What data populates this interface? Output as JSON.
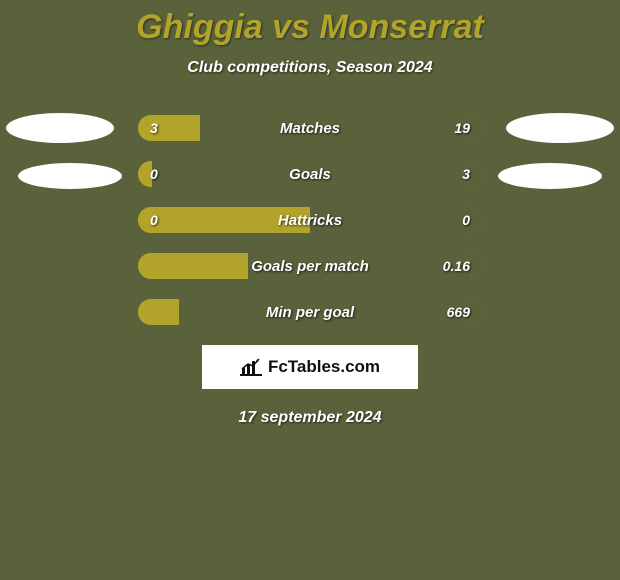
{
  "background_color": "#5a623c",
  "title": {
    "text": "Ghiggia vs Monserrat",
    "color": "#b2a32b",
    "fontsize": 34
  },
  "subtitle": {
    "text": "Club competitions, Season 2024",
    "color": "#ffffff",
    "fontsize": 16
  },
  "team_colors": {
    "left": "#b2a32b",
    "right": "#5a623c"
  },
  "bar_track_color": "#b2a32b",
  "stats": [
    {
      "label": "Matches",
      "left_value": "3",
      "right_value": "19",
      "left_pct": 18,
      "right_pct": 82
    },
    {
      "label": "Goals",
      "left_value": "0",
      "right_value": "3",
      "left_pct": 4,
      "right_pct": 96
    },
    {
      "label": "Hattricks",
      "left_value": "0",
      "right_value": "0",
      "left_pct": 50,
      "right_pct": 50
    },
    {
      "label": "Goals per match",
      "left_value": "",
      "right_value": "0.16",
      "left_pct": 32,
      "right_pct": 68
    },
    {
      "label": "Min per goal",
      "left_value": "",
      "right_value": "669",
      "left_pct": 12,
      "right_pct": 88
    }
  ],
  "ellipses": {
    "color": "#ffffff",
    "show_row1": true,
    "show_row2": true
  },
  "brand": {
    "text": "FcTables.com",
    "box_bg": "#ffffff",
    "text_color": "#111111"
  },
  "date_text": "17 september 2024"
}
